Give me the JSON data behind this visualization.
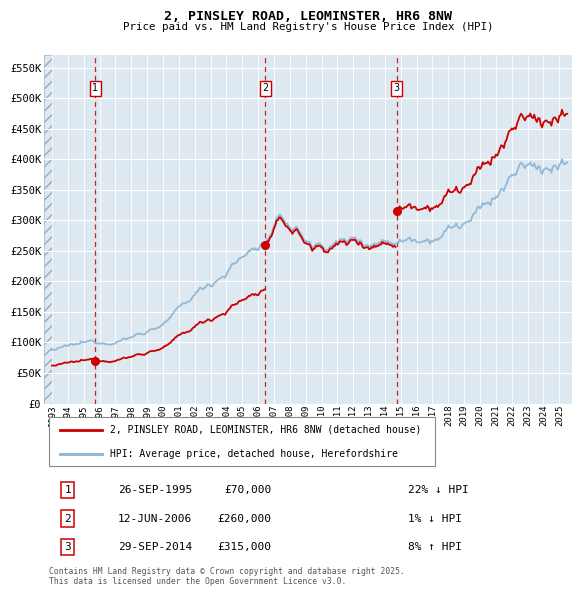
{
  "title": "2, PINSLEY ROAD, LEOMINSTER, HR6 8NW",
  "subtitle": "Price paid vs. HM Land Registry's House Price Index (HPI)",
  "ylabel_ticks": [
    "£0",
    "£50K",
    "£100K",
    "£150K",
    "£200K",
    "£250K",
    "£300K",
    "£350K",
    "£400K",
    "£450K",
    "£500K",
    "£550K"
  ],
  "ytick_vals": [
    0,
    50000,
    100000,
    150000,
    200000,
    250000,
    300000,
    350000,
    400000,
    450000,
    500000,
    550000
  ],
  "ylim": [
    0,
    570000
  ],
  "xlim_start": 1992.5,
  "xlim_end": 2025.8,
  "sale_dates": [
    1995.73,
    2006.45,
    2014.75
  ],
  "sale_prices": [
    70000,
    260000,
    315000
  ],
  "sale_labels": [
    "1",
    "2",
    "3"
  ],
  "sale_info": [
    {
      "num": "1",
      "date": "26-SEP-1995",
      "price": "£70,000",
      "hpi_diff": "22% ↓ HPI"
    },
    {
      "num": "2",
      "date": "12-JUN-2006",
      "price": "£260,000",
      "hpi_diff": "1% ↓ HPI"
    },
    {
      "num": "3",
      "date": "29-SEP-2014",
      "price": "£315,000",
      "hpi_diff": "8% ↑ HPI"
    }
  ],
  "legend_entries": [
    "2, PINSLEY ROAD, LEOMINSTER, HR6 8NW (detached house)",
    "HPI: Average price, detached house, Herefordshire"
  ],
  "red_color": "#cc0000",
  "blue_color": "#8ab4d4",
  "background_color": "#dde8f0",
  "grid_color": "#ffffff",
  "footer_text": "Contains HM Land Registry data © Crown copyright and database right 2025.\nThis data is licensed under the Open Government Licence v3.0.",
  "xtick_years": [
    1993,
    1994,
    1995,
    1996,
    1997,
    1998,
    1999,
    2000,
    2001,
    2002,
    2003,
    2004,
    2005,
    2006,
    2007,
    2008,
    2009,
    2010,
    2011,
    2012,
    2013,
    2014,
    2015,
    2016,
    2017,
    2018,
    2019,
    2020,
    2021,
    2022,
    2023,
    2024,
    2025
  ]
}
